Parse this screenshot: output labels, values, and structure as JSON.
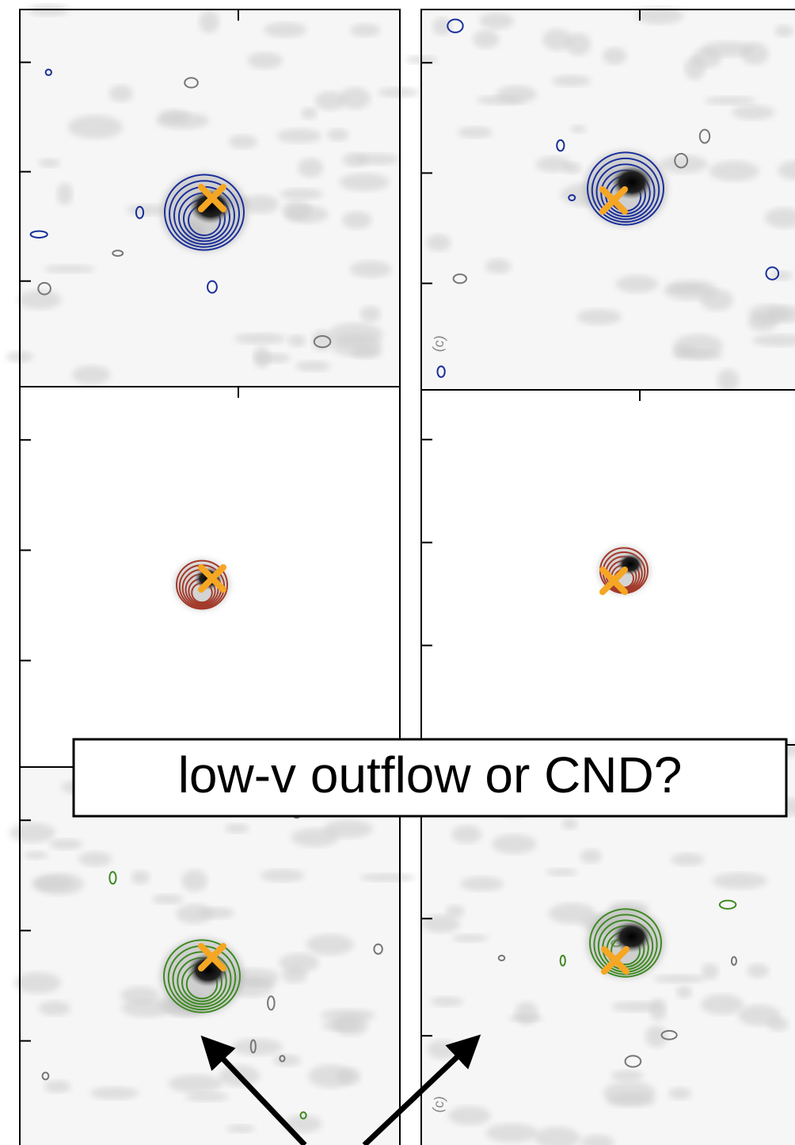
{
  "annotation": {
    "text": "low-v outflow or CND?"
  },
  "panel_labels": [
    "(c)",
    "(c)"
  ]
}
